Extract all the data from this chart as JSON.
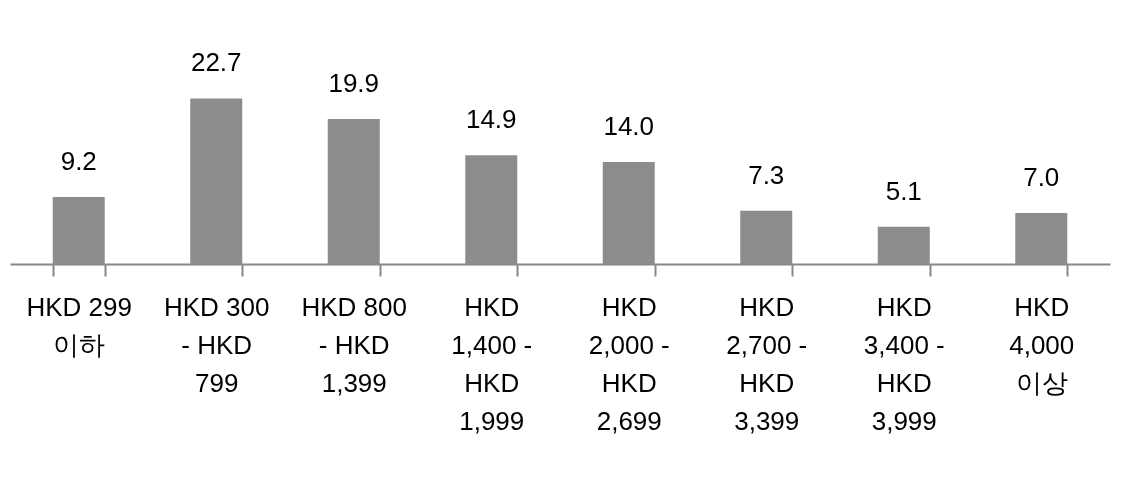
{
  "chart_data": {
    "type": "bar",
    "categories": [
      "HKD 299 이하",
      "HKD 300 - HKD 799",
      "HKD 800 - HKD 1,399",
      "HKD 1,400 - HKD 1,999",
      "HKD 2,000 - HKD 2,699",
      "HKD 2,700 - HKD 3,399",
      "HKD 3,400 - HKD 3,999",
      "HKD 4,000 이상"
    ],
    "values": [
      9.2,
      22.7,
      19.9,
      14.9,
      14.0,
      7.3,
      5.1,
      7.0
    ],
    "value_labels": [
      "9.2",
      "22.7",
      "19.9",
      "14.9",
      "14.0",
      "7.3",
      "5.1",
      "7.0"
    ],
    "color": "#8c8c8c",
    "grid": false,
    "tick_labels": "x"
  }
}
